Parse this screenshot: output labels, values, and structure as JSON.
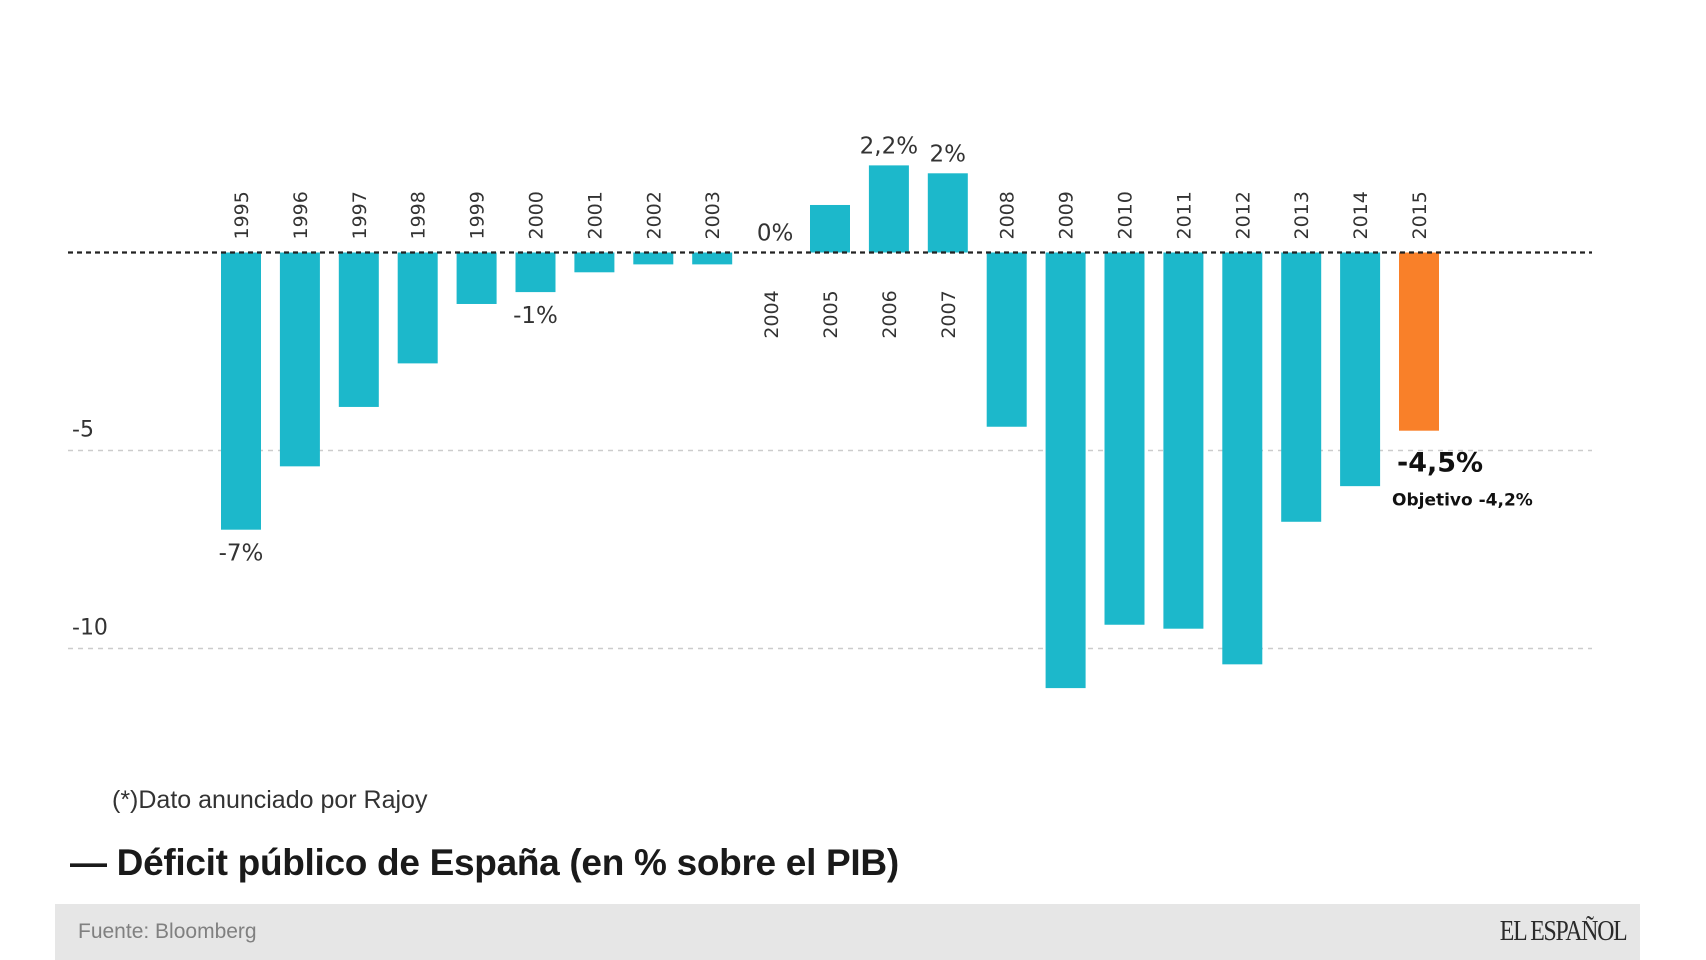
{
  "chart_data": {
    "type": "bar",
    "title": "Déficit público de España (en % sobre el PIB)",
    "title_prefix": "—",
    "xlabel": "",
    "ylabel": "",
    "ylim": [
      -11.5,
      3
    ],
    "yticks": [
      -5,
      -10
    ],
    "ytick_labels": [
      "-5",
      "-10"
    ],
    "grid": true,
    "legend": "none",
    "categories": [
      "1995",
      "1996",
      "1997",
      "1998",
      "1999",
      "2000",
      "2001",
      "2002",
      "2003",
      "2004",
      "2005",
      "2006",
      "2007",
      "2008",
      "2009",
      "2010",
      "2011",
      "2012",
      "2013",
      "2014",
      "2015"
    ],
    "series": [
      {
        "name": "Déficit público (% PIB)",
        "values": [
          -7.0,
          -5.4,
          -3.9,
          -2.8,
          -1.3,
          -1.0,
          -0.5,
          -0.3,
          -0.3,
          0.0,
          1.2,
          2.2,
          2.0,
          -4.4,
          -11.0,
          -9.4,
          -9.5,
          -10.4,
          -6.8,
          -5.9,
          -4.5
        ]
      }
    ],
    "colors": {
      "default": "#1cb8cb",
      "highlight": "#f98029",
      "zero_line": "#222222",
      "grid": "#cccccc"
    },
    "highlight_category": "2015",
    "data_labels": [
      {
        "category": "1995",
        "text": "-7%",
        "style": "normal"
      },
      {
        "category": "2000",
        "text": "-1%",
        "style": "normal"
      },
      {
        "category": "2004",
        "text": "0%",
        "style": "normal"
      },
      {
        "category": "2006",
        "text": "2,2%",
        "style": "normal"
      },
      {
        "category": "2007",
        "text": "2%",
        "style": "normal"
      },
      {
        "category": "2015",
        "text": "-4,5%",
        "style": "highlight"
      }
    ],
    "annotations": [
      {
        "category": "2015",
        "text": "Objetivo -4,2%"
      }
    ]
  },
  "footnote": "(*)Dato anunciado por Rajoy",
  "title_text": "— Déficit público de España (en % sobre el PIB)",
  "footer": {
    "source": "Fuente: Bloomberg",
    "brand": "EL ESPAÑOL"
  }
}
